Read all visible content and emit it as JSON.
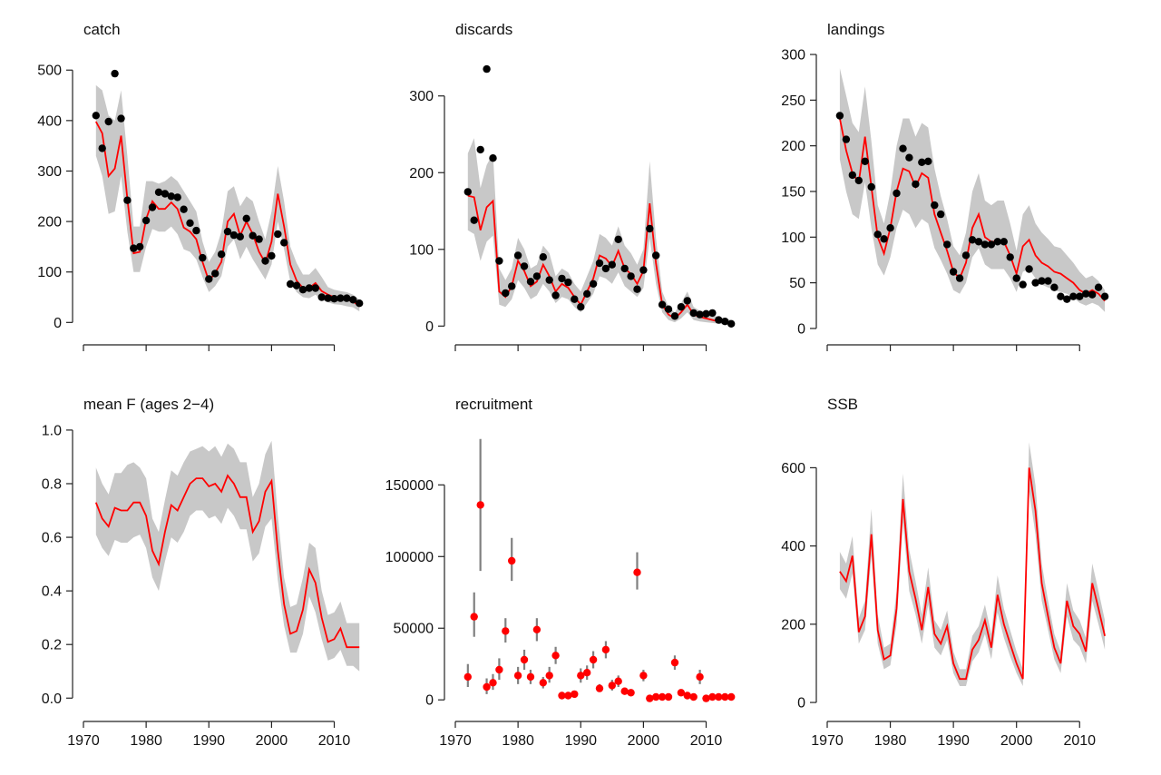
{
  "colors": {
    "model": "#ff0000",
    "band": "#c8c8c8",
    "obs": "#000000",
    "error_bar": "#808080",
    "recruit_point": "#ff0000"
  },
  "chart_data": [
    {
      "type": "line",
      "title": "catch",
      "grid": false,
      "show_x_labels": false,
      "xlim": [
        1970,
        2016
      ],
      "ylim": [
        -30,
        540
      ],
      "x_ticks": [
        1970,
        1980,
        1990,
        2000,
        2010
      ],
      "y_ticks": [
        0,
        100,
        200,
        300,
        400,
        500
      ],
      "x": [
        1972,
        1973,
        1974,
        1975,
        1976,
        1977,
        1978,
        1979,
        1980,
        1981,
        1982,
        1983,
        1984,
        1985,
        1986,
        1987,
        1988,
        1989,
        1990,
        1991,
        1992,
        1993,
        1994,
        1995,
        1996,
        1997,
        1998,
        1999,
        2000,
        2001,
        2002,
        2003,
        2004,
        2005,
        2006,
        2007,
        2008,
        2009,
        2010,
        2011,
        2012,
        2013,
        2014
      ],
      "model": [
        398,
        375,
        290,
        305,
        370,
        245,
        137,
        140,
        205,
        240,
        225,
        225,
        238,
        225,
        188,
        180,
        165,
        120,
        82,
        98,
        120,
        200,
        215,
        172,
        200,
        175,
        140,
        118,
        160,
        255,
        190,
        115,
        83,
        68,
        68,
        78,
        62,
        55,
        50,
        48,
        45,
        42,
        32
      ],
      "band_upper": [
        470,
        460,
        410,
        400,
        460,
        330,
        190,
        190,
        280,
        280,
        275,
        280,
        290,
        280,
        260,
        240,
        220,
        160,
        120,
        140,
        180,
        260,
        270,
        230,
        250,
        240,
        200,
        165,
        220,
        310,
        240,
        150,
        118,
        95,
        95,
        108,
        90,
        70,
        65,
        62,
        60,
        55,
        45
      ],
      "band_lower": [
        330,
        290,
        215,
        220,
        290,
        180,
        100,
        100,
        150,
        185,
        180,
        180,
        190,
        175,
        145,
        140,
        125,
        90,
        60,
        72,
        92,
        150,
        165,
        125,
        150,
        125,
        105,
        85,
        115,
        200,
        145,
        80,
        60,
        50,
        48,
        55,
        45,
        40,
        36,
        35,
        32,
        30,
        22
      ],
      "observed": [
        410,
        345,
        398,
        493,
        404,
        242,
        147,
        150,
        202,
        228,
        258,
        255,
        250,
        248,
        224,
        197,
        182,
        128,
        86,
        97,
        135,
        180,
        173,
        170,
        206,
        172,
        165,
        122,
        132,
        175,
        158,
        76,
        73,
        65,
        68,
        68,
        50,
        48,
        47,
        48,
        48,
        45,
        38
      ]
    },
    {
      "type": "line",
      "title": "discards",
      "grid": false,
      "show_x_labels": false,
      "xlim": [
        1970,
        2016
      ],
      "ylim": [
        -15,
        360
      ],
      "x_ticks": [
        1970,
        1980,
        1990,
        2000,
        2010
      ],
      "y_ticks": [
        0,
        100,
        200,
        300
      ],
      "x": [
        1972,
        1973,
        1974,
        1975,
        1976,
        1977,
        1978,
        1979,
        1980,
        1981,
        1982,
        1983,
        1984,
        1985,
        1986,
        1987,
        1988,
        1989,
        1990,
        1991,
        1992,
        1993,
        1994,
        1995,
        1996,
        1997,
        1998,
        1999,
        2000,
        2001,
        2002,
        2003,
        2004,
        2005,
        2006,
        2007,
        2008,
        2009,
        2010,
        2011,
        2012,
        2013,
        2014
      ],
      "model": [
        170,
        168,
        125,
        155,
        163,
        45,
        38,
        52,
        85,
        72,
        52,
        58,
        80,
        65,
        45,
        55,
        50,
        38,
        28,
        45,
        62,
        92,
        88,
        78,
        98,
        75,
        68,
        55,
        72,
        160,
        82,
        28,
        15,
        10,
        18,
        28,
        15,
        12,
        10,
        8,
        6,
        5,
        3
      ],
      "band_upper": [
        225,
        245,
        180,
        210,
        225,
        75,
        60,
        75,
        115,
        100,
        75,
        80,
        105,
        95,
        65,
        75,
        70,
        55,
        45,
        65,
        85,
        120,
        115,
        105,
        130,
        105,
        95,
        80,
        100,
        215,
        115,
        45,
        25,
        18,
        30,
        45,
        25,
        20,
        18,
        14,
        12,
        10,
        8
      ],
      "band_lower": [
        125,
        120,
        85,
        110,
        118,
        28,
        25,
        35,
        60,
        50,
        35,
        40,
        55,
        45,
        30,
        38,
        35,
        25,
        18,
        30,
        42,
        65,
        62,
        55,
        70,
        52,
        45,
        38,
        50,
        115,
        55,
        18,
        8,
        5,
        10,
        18,
        8,
        6,
        5,
        4,
        3,
        2,
        1
      ],
      "observed": [
        175,
        138,
        230,
        335,
        219,
        85,
        43,
        52,
        92,
        78,
        58,
        65,
        90,
        60,
        40,
        62,
        57,
        35,
        25,
        42,
        55,
        82,
        75,
        80,
        113,
        75,
        65,
        48,
        73,
        127,
        92,
        28,
        22,
        13,
        25,
        33,
        17,
        15,
        16,
        17,
        8,
        6,
        3
      ]
    },
    {
      "type": "line",
      "title": "landings",
      "grid": false,
      "show_x_labels": false,
      "xlim": [
        1970,
        2016
      ],
      "ylim": [
        -10,
        305
      ],
      "x_ticks": [
        1970,
        1980,
        1990,
        2000,
        2010
      ],
      "y_ticks": [
        0,
        50,
        100,
        150,
        200,
        250,
        300
      ],
      "x": [
        1972,
        1973,
        1974,
        1975,
        1976,
        1977,
        1978,
        1979,
        1980,
        1981,
        1982,
        1983,
        1984,
        1985,
        1986,
        1987,
        1988,
        1989,
        1990,
        1991,
        1992,
        1993,
        1994,
        1995,
        1996,
        1997,
        1998,
        1999,
        2000,
        2001,
        2002,
        2003,
        2004,
        2005,
        2006,
        2007,
        2008,
        2009,
        2010,
        2011,
        2012,
        2013,
        2014
      ],
      "model": [
        230,
        195,
        170,
        160,
        210,
        155,
        100,
        82,
        110,
        150,
        175,
        172,
        155,
        170,
        165,
        125,
        105,
        85,
        62,
        55,
        72,
        110,
        125,
        100,
        95,
        95,
        95,
        80,
        60,
        90,
        97,
        80,
        72,
        68,
        62,
        60,
        55,
        50,
        42,
        38,
        42,
        38,
        30
      ],
      "band_upper": [
        285,
        255,
        225,
        215,
        265,
        205,
        135,
        115,
        150,
        200,
        230,
        230,
        210,
        225,
        220,
        175,
        145,
        120,
        90,
        80,
        105,
        150,
        170,
        140,
        135,
        140,
        140,
        115,
        85,
        125,
        135,
        115,
        105,
        98,
        90,
        88,
        80,
        72,
        62,
        55,
        58,
        52,
        42
      ],
      "band_lower": [
        185,
        150,
        125,
        120,
        160,
        110,
        70,
        58,
        78,
        110,
        130,
        125,
        110,
        120,
        115,
        88,
        75,
        60,
        42,
        38,
        50,
        78,
        88,
        70,
        65,
        65,
        65,
        55,
        40,
        62,
        65,
        55,
        48,
        45,
        42,
        40,
        38,
        34,
        28,
        25,
        28,
        25,
        18
      ],
      "observed": [
        233,
        207,
        168,
        162,
        183,
        155,
        103,
        98,
        110,
        148,
        197,
        187,
        158,
        182,
        183,
        135,
        125,
        92,
        62,
        55,
        80,
        97,
        95,
        92,
        92,
        95,
        95,
        78,
        55,
        48,
        65,
        50,
        52,
        52,
        45,
        35,
        32,
        35,
        35,
        38,
        37,
        45,
        35
      ]
    },
    {
      "type": "line",
      "title": "mean F (ages 2−4)",
      "grid": false,
      "show_x_labels": true,
      "xlim": [
        1970,
        2016
      ],
      "ylim": [
        -0.06,
        1.02
      ],
      "x_ticks": [
        1970,
        1980,
        1990,
        2000,
        2010
      ],
      "y_ticks": [
        0.0,
        0.2,
        0.4,
        0.6,
        0.8,
        1.0
      ],
      "y_tick_format": "fixed1",
      "x": [
        1972,
        1973,
        1974,
        1975,
        1976,
        1977,
        1978,
        1979,
        1980,
        1981,
        1982,
        1983,
        1984,
        1985,
        1986,
        1987,
        1988,
        1989,
        1990,
        1991,
        1992,
        1993,
        1994,
        1995,
        1996,
        1997,
        1998,
        1999,
        2000,
        2001,
        2002,
        2003,
        2004,
        2005,
        2006,
        2007,
        2008,
        2009,
        2010,
        2011,
        2012,
        2013,
        2014
      ],
      "model": [
        0.73,
        0.67,
        0.64,
        0.71,
        0.7,
        0.7,
        0.73,
        0.73,
        0.68,
        0.55,
        0.5,
        0.62,
        0.72,
        0.7,
        0.75,
        0.8,
        0.82,
        0.82,
        0.79,
        0.8,
        0.77,
        0.83,
        0.8,
        0.75,
        0.75,
        0.62,
        0.66,
        0.77,
        0.81,
        0.55,
        0.35,
        0.24,
        0.25,
        0.33,
        0.48,
        0.43,
        0.3,
        0.21,
        0.22,
        0.26,
        0.19,
        0.19,
        0.19
      ],
      "band_upper": [
        0.86,
        0.8,
        0.76,
        0.84,
        0.84,
        0.87,
        0.88,
        0.86,
        0.82,
        0.67,
        0.62,
        0.74,
        0.85,
        0.83,
        0.88,
        0.92,
        0.93,
        0.94,
        0.92,
        0.94,
        0.9,
        0.95,
        0.93,
        0.88,
        0.88,
        0.75,
        0.8,
        0.91,
        0.96,
        0.68,
        0.45,
        0.34,
        0.35,
        0.45,
        0.58,
        0.56,
        0.4,
        0.31,
        0.32,
        0.36,
        0.28,
        0.28,
        0.28
      ],
      "band_lower": [
        0.61,
        0.56,
        0.53,
        0.59,
        0.58,
        0.58,
        0.6,
        0.61,
        0.56,
        0.45,
        0.4,
        0.51,
        0.6,
        0.58,
        0.62,
        0.68,
        0.7,
        0.7,
        0.67,
        0.68,
        0.65,
        0.71,
        0.68,
        0.63,
        0.63,
        0.51,
        0.54,
        0.64,
        0.67,
        0.44,
        0.27,
        0.17,
        0.17,
        0.24,
        0.38,
        0.32,
        0.22,
        0.14,
        0.15,
        0.18,
        0.12,
        0.12,
        0.1
      ],
      "observed": []
    },
    {
      "type": "scatter",
      "title": "recruitment",
      "grid": false,
      "show_x_labels": true,
      "xlim": [
        1970,
        2016
      ],
      "ylim": [
        -10000,
        192000
      ],
      "x_ticks": [
        1970,
        1980,
        1990,
        2000,
        2010
      ],
      "y_ticks": [
        0,
        50000,
        100000,
        150000
      ],
      "x": [
        1972,
        1973,
        1974,
        1975,
        1976,
        1977,
        1978,
        1979,
        1980,
        1981,
        1982,
        1983,
        1984,
        1985,
        1986,
        1987,
        1988,
        1989,
        1990,
        1991,
        1992,
        1993,
        1994,
        1995,
        1996,
        1997,
        1998,
        1999,
        2000,
        2001,
        2002,
        2003,
        2004,
        2005,
        2006,
        2007,
        2008,
        2009,
        2010,
        2011,
        2012,
        2013,
        2014
      ],
      "values": [
        16000,
        58000,
        136000,
        9000,
        12000,
        21000,
        48000,
        97000,
        17000,
        28000,
        16000,
        49000,
        12000,
        17000,
        31000,
        3000,
        3000,
        4000,
        17000,
        19000,
        28000,
        8000,
        35000,
        10000,
        13000,
        6000,
        5000,
        89000,
        17000,
        1000,
        2000,
        2000,
        2000,
        26000,
        5000,
        3000,
        2000,
        16000,
        1000,
        2000,
        2000,
        2000,
        2000
      ],
      "err_upper": [
        25000,
        75000,
        182000,
        15000,
        18000,
        29000,
        57000,
        113000,
        23000,
        35000,
        21000,
        57000,
        16000,
        23000,
        37000,
        4500,
        4500,
        5500,
        22000,
        24000,
        34000,
        11000,
        41000,
        14000,
        17000,
        8500,
        7000,
        103000,
        21000,
        1500,
        2800,
        2800,
        2800,
        31000,
        7000,
        4500,
        2800,
        21000,
        1500,
        2800,
        2800,
        2800,
        2800
      ],
      "err_lower": [
        9000,
        44000,
        90000,
        4000,
        7000,
        14000,
        40000,
        83000,
        11000,
        21000,
        11000,
        41000,
        8000,
        12000,
        25000,
        2000,
        2000,
        2500,
        12000,
        14000,
        22000,
        5500,
        29000,
        6500,
        9000,
        4000,
        3500,
        77000,
        13000,
        600,
        1200,
        1200,
        1200,
        21000,
        3500,
        2000,
        1200,
        11000,
        600,
        1200,
        1200,
        1200,
        1200
      ]
    },
    {
      "type": "line",
      "title": "SSB",
      "grid": false,
      "show_x_labels": true,
      "xlim": [
        1970,
        2016
      ],
      "ylim": [
        -30,
        710
      ],
      "x_ticks": [
        1970,
        1980,
        1990,
        2000,
        2010
      ],
      "y_ticks": [
        0,
        200,
        400,
        600
      ],
      "x": [
        1972,
        1973,
        1974,
        1975,
        1976,
        1977,
        1978,
        1979,
        1980,
        1981,
        1982,
        1983,
        1984,
        1985,
        1986,
        1987,
        1988,
        1989,
        1990,
        1991,
        1992,
        1993,
        1994,
        1995,
        1996,
        1997,
        1998,
        1999,
        2000,
        2001,
        2002,
        2003,
        2004,
        2005,
        2006,
        2007,
        2008,
        2009,
        2010,
        2011,
        2012,
        2013,
        2014
      ],
      "model": [
        335,
        310,
        375,
        180,
        220,
        430,
        185,
        110,
        120,
        240,
        520,
        335,
        265,
        185,
        295,
        175,
        150,
        195,
        100,
        60,
        60,
        135,
        160,
        210,
        140,
        275,
        200,
        150,
        100,
        60,
        600,
        490,
        305,
        220,
        140,
        100,
        260,
        195,
        175,
        130,
        305,
        240,
        170
      ],
      "band_upper": [
        385,
        355,
        425,
        215,
        260,
        495,
        225,
        140,
        150,
        285,
        585,
        390,
        310,
        225,
        345,
        210,
        185,
        235,
        130,
        85,
        85,
        170,
        195,
        250,
        175,
        325,
        240,
        185,
        130,
        85,
        665,
        555,
        355,
        260,
        175,
        130,
        305,
        235,
        210,
        165,
        355,
        285,
        210
      ],
      "band_lower": [
        290,
        265,
        330,
        150,
        185,
        375,
        150,
        85,
        95,
        200,
        460,
        285,
        225,
        150,
        250,
        140,
        120,
        160,
        75,
        42,
        42,
        105,
        128,
        175,
        110,
        230,
        165,
        118,
        75,
        42,
        540,
        430,
        260,
        185,
        110,
        75,
        220,
        160,
        142,
        100,
        260,
        200,
        135
      ],
      "observed": []
    }
  ]
}
